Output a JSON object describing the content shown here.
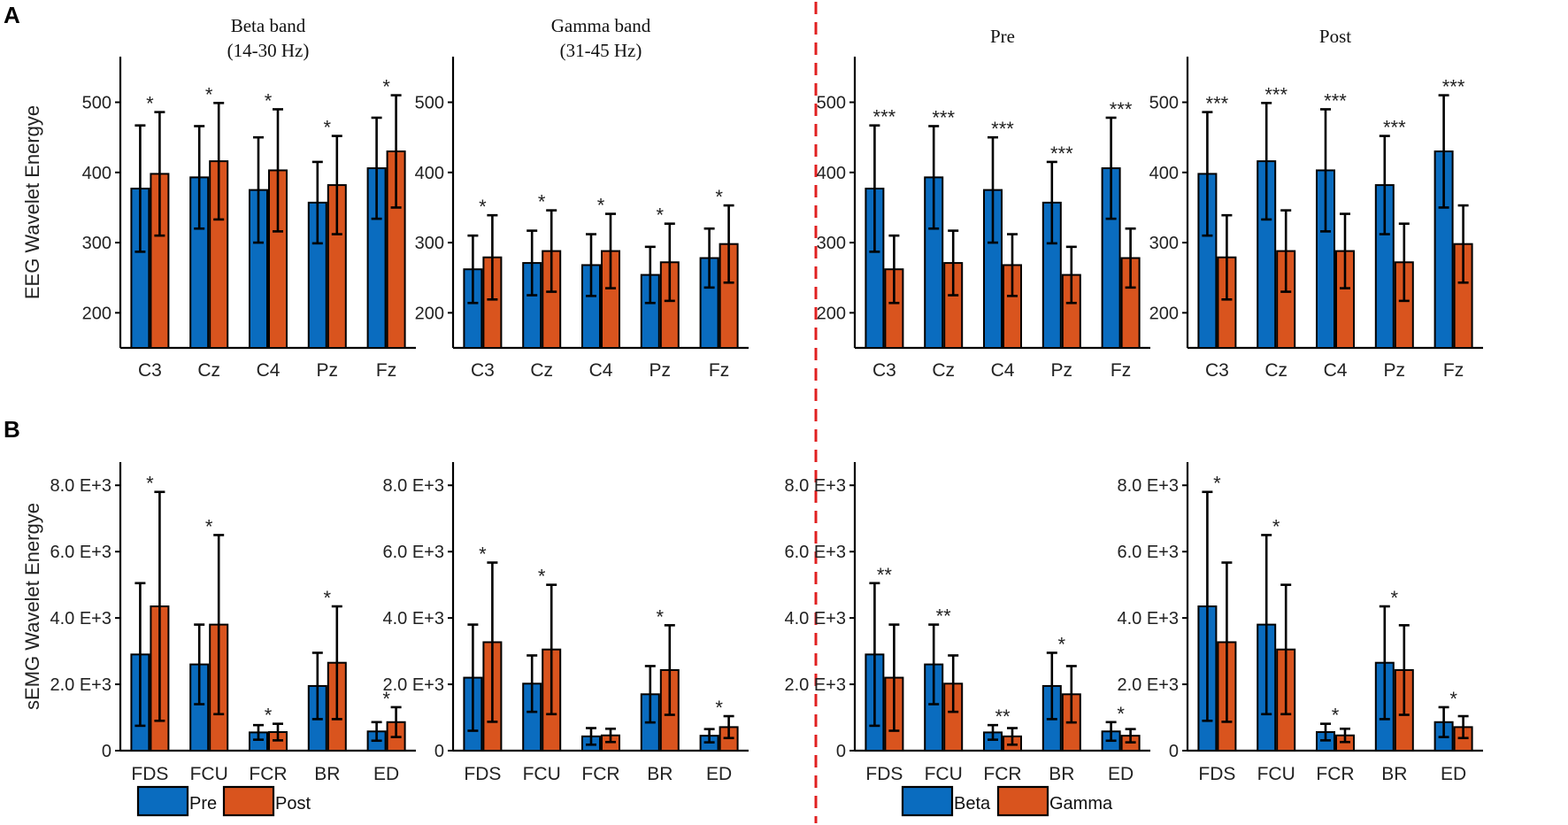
{
  "panel_labels": [
    "A",
    "B"
  ],
  "colors": {
    "blue": "#0a6cbf",
    "orange": "#d9541e",
    "divider": "#e02020"
  },
  "legends": {
    "left": [
      "Pre",
      "Post"
    ],
    "right": [
      "Beta",
      "Gamma"
    ]
  },
  "chart_data": [
    {
      "type": "bar",
      "row": "A",
      "col": 0,
      "title": [
        "Beta band",
        "(14-30 Hz)"
      ],
      "ylabel": "EEG Wavelet Energye",
      "ylim": [
        150,
        565
      ],
      "yticks": [
        200,
        300,
        400,
        500
      ],
      "ytick_labels": [
        "200",
        "300",
        "400",
        "500"
      ],
      "categories": [
        "C3",
        "Cz",
        "C4",
        "Pz",
        "Fz"
      ],
      "series": [
        {
          "name": "Pre",
          "values": [
            377,
            393,
            375,
            357,
            406
          ],
          "errors": [
            90,
            73,
            75,
            58,
            72
          ]
        },
        {
          "name": "Post",
          "values": [
            398,
            416,
            403,
            382,
            430
          ],
          "errors": [
            88,
            83,
            87,
            70,
            80
          ]
        }
      ],
      "annotations": [
        "*",
        "*",
        "*",
        "*",
        "*"
      ]
    },
    {
      "type": "bar",
      "row": "A",
      "col": 1,
      "title": [
        "Gamma band",
        "(31-45 Hz)"
      ],
      "ylabel": "",
      "ylim": [
        150,
        565
      ],
      "yticks": [
        200,
        300,
        400,
        500
      ],
      "ytick_labels": [
        "200",
        "300",
        "400",
        "500"
      ],
      "categories": [
        "C3",
        "Cz",
        "C4",
        "Pz",
        "Fz"
      ],
      "series": [
        {
          "name": "Pre",
          "values": [
            262,
            271,
            268,
            254,
            278
          ],
          "errors": [
            48,
            46,
            44,
            40,
            42
          ]
        },
        {
          "name": "Post",
          "values": [
            279,
            288,
            288,
            272,
            298
          ],
          "errors": [
            60,
            58,
            53,
            55,
            55
          ]
        }
      ],
      "annotations": [
        "*",
        "*",
        "*",
        "*",
        "*"
      ]
    },
    {
      "type": "bar",
      "row": "A",
      "col": 2,
      "title": [
        "Pre"
      ],
      "ylabel": "",
      "ylim": [
        150,
        565
      ],
      "yticks": [
        200,
        300,
        400,
        500
      ],
      "ytick_labels": [
        "200",
        "300",
        "400",
        "500"
      ],
      "categories": [
        "C3",
        "Cz",
        "C4",
        "Pz",
        "Fz"
      ],
      "series": [
        {
          "name": "Beta",
          "values": [
            377,
            393,
            375,
            357,
            406
          ],
          "errors": [
            90,
            73,
            75,
            58,
            72
          ]
        },
        {
          "name": "Gamma",
          "values": [
            262,
            271,
            268,
            254,
            278
          ],
          "errors": [
            48,
            46,
            44,
            40,
            42
          ]
        }
      ],
      "annotations": [
        "***",
        "***",
        "***",
        "***",
        "***"
      ]
    },
    {
      "type": "bar",
      "row": "A",
      "col": 3,
      "title": [
        "Post"
      ],
      "ylabel": "",
      "ylim": [
        150,
        565
      ],
      "yticks": [
        200,
        300,
        400,
        500
      ],
      "ytick_labels": [
        "200",
        "300",
        "400",
        "500"
      ],
      "categories": [
        "C3",
        "Cz",
        "C4",
        "Pz",
        "Fz"
      ],
      "series": [
        {
          "name": "Beta",
          "values": [
            398,
            416,
            403,
            382,
            430
          ],
          "errors": [
            88,
            83,
            87,
            70,
            80
          ]
        },
        {
          "name": "Gamma",
          "values": [
            279,
            288,
            288,
            272,
            298
          ],
          "errors": [
            60,
            58,
            53,
            55,
            55
          ]
        }
      ],
      "annotations": [
        "***",
        "***",
        "***",
        "***",
        "***"
      ]
    },
    {
      "type": "bar",
      "row": "B",
      "col": 0,
      "title": [],
      "ylabel": "sEMG Wavelet Energye",
      "ylim": [
        0,
        8700
      ],
      "yticks": [
        0,
        2000,
        4000,
        6000,
        8000
      ],
      "ytick_labels": [
        "0",
        "2.0 E+3",
        "4.0 E+3",
        "6.0 E+3",
        "8.0 E+3"
      ],
      "categories": [
        "FDS",
        "FCU",
        "FCR",
        "BR",
        "ED"
      ],
      "series": [
        {
          "name": "Pre",
          "values": [
            2900,
            2600,
            550,
            1950,
            580
          ],
          "errors": [
            2150,
            1200,
            220,
            1000,
            280
          ]
        },
        {
          "name": "Post",
          "values": [
            4350,
            3800,
            560,
            2650,
            860
          ],
          "errors": [
            3450,
            2700,
            250,
            1700,
            450
          ]
        }
      ],
      "annotations": [
        "*",
        "*",
        "*",
        "*",
        "*"
      ]
    },
    {
      "type": "bar",
      "row": "B",
      "col": 1,
      "title": [],
      "ylabel": "",
      "ylim": [
        0,
        8700
      ],
      "yticks": [
        0,
        2000,
        4000,
        6000,
        8000
      ],
      "ytick_labels": [
        "0",
        "2.0 E+3",
        "4.0 E+3",
        "6.0 E+3",
        "8.0 E+3"
      ],
      "categories": [
        "FDS",
        "FCU",
        "FCR",
        "BR",
        "ED"
      ],
      "series": [
        {
          "name": "Pre",
          "values": [
            2200,
            2020,
            430,
            1700,
            450
          ],
          "errors": [
            1600,
            850,
            250,
            850,
            200
          ]
        },
        {
          "name": "Post",
          "values": [
            3270,
            3050,
            460,
            2430,
            710
          ],
          "errors": [
            2400,
            1950,
            200,
            1350,
            330
          ]
        }
      ],
      "annotations": [
        "*",
        "*",
        "",
        "*",
        "*"
      ]
    },
    {
      "type": "bar",
      "row": "B",
      "col": 2,
      "title": [],
      "ylabel": "",
      "ylim": [
        0,
        8700
      ],
      "yticks": [
        0,
        2000,
        4000,
        6000,
        8000
      ],
      "ytick_labels": [
        "0",
        "2.0 E+3",
        "4.0 E+3",
        "6.0 E+3",
        "8.0 E+3"
      ],
      "categories": [
        "FDS",
        "FCU",
        "FCR",
        "BR",
        "ED"
      ],
      "series": [
        {
          "name": "Beta",
          "values": [
            2900,
            2600,
            550,
            1950,
            580
          ],
          "errors": [
            2150,
            1200,
            220,
            1000,
            280
          ]
        },
        {
          "name": "Gamma",
          "values": [
            2200,
            2020,
            430,
            1700,
            450
          ],
          "errors": [
            1600,
            850,
            250,
            850,
            200
          ]
        }
      ],
      "annotations": [
        "**",
        "**",
        "**",
        "*",
        "*"
      ]
    },
    {
      "type": "bar",
      "row": "B",
      "col": 3,
      "title": [],
      "ylabel": "",
      "ylim": [
        0,
        8700
      ],
      "yticks": [
        0,
        2000,
        4000,
        6000,
        8000
      ],
      "ytick_labels": [
        "0",
        "2.0 E+3",
        "4.0 E+3",
        "6.0 E+3",
        "8.0 E+3"
      ],
      "categories": [
        "FDS",
        "FCU",
        "FCR",
        "BR",
        "ED"
      ],
      "series": [
        {
          "name": "Beta",
          "values": [
            4350,
            3800,
            560,
            2650,
            860
          ],
          "errors": [
            3450,
            2700,
            250,
            1700,
            450
          ]
        },
        {
          "name": "Gamma",
          "values": [
            3270,
            3050,
            460,
            2430,
            710
          ],
          "errors": [
            2400,
            1950,
            200,
            1350,
            330
          ]
        }
      ],
      "annotations": [
        "*",
        "*",
        "*",
        "*",
        "*"
      ]
    }
  ]
}
